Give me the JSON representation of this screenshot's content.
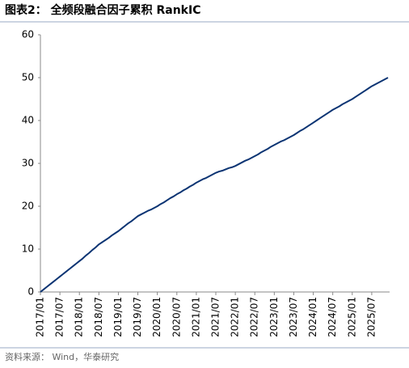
{
  "chart_data": {
    "type": "line",
    "title": "图表2：  全频段融合因子累积 RankIC",
    "source": "资料来源：  Wind，华泰研究",
    "categories": [
      "2017/01",
      null,
      null,
      null,
      null,
      null,
      "2017/07",
      null,
      null,
      null,
      null,
      null,
      "2018/01",
      null,
      null,
      null,
      null,
      null,
      "2018/07",
      null,
      null,
      null,
      null,
      null,
      "2019/01",
      null,
      null,
      null,
      null,
      null,
      "2019/07",
      null,
      null,
      null,
      null,
      null,
      "2020/01",
      null,
      null,
      null,
      null,
      null,
      "2020/07",
      null,
      null,
      null,
      null,
      null,
      "2021/01",
      null,
      null,
      null,
      null,
      null,
      "2021/07",
      null,
      null,
      null,
      null,
      null,
      "2022/01",
      null,
      null,
      null,
      null,
      null,
      "2022/07",
      null,
      null,
      null,
      null,
      null,
      "2023/01",
      null,
      null,
      null,
      null,
      null,
      "2023/07",
      null,
      null,
      null,
      null,
      null,
      "2024/01",
      null,
      null,
      null,
      null,
      null,
      "2024/07",
      null,
      null,
      null,
      null,
      null,
      "2025/01",
      null,
      null,
      null,
      null,
      null,
      "2025/07",
      null,
      null,
      null,
      null,
      null
    ],
    "values": [
      0,
      0.6,
      1.2,
      1.8,
      2.4,
      3.0,
      3.6,
      4.2,
      4.8,
      5.4,
      6.0,
      6.6,
      7.2,
      7.8,
      8.5,
      9.1,
      9.8,
      10.4,
      11.1,
      11.6,
      12.1,
      12.6,
      13.2,
      13.7,
      14.2,
      14.8,
      15.4,
      16.0,
      16.5,
      17.1,
      17.7,
      18.1,
      18.5,
      18.9,
      19.2,
      19.6,
      20,
      20.5,
      20.9,
      21.4,
      21.9,
      22.3,
      22.8,
      23.2,
      23.7,
      24.1,
      24.6,
      25.0,
      25.5,
      25.9,
      26.3,
      26.6,
      27.0,
      27.4,
      27.8,
      28.1,
      28.3,
      28.6,
      28.9,
      29.1,
      29.4,
      29.8,
      30.2,
      30.6,
      30.9,
      31.3,
      31.7,
      32.1,
      32.6,
      33.0,
      33.4,
      33.9,
      34.3,
      34.7,
      35.1,
      35.4,
      35.8,
      36.2,
      36.6,
      37.1,
      37.6,
      38.0,
      38.5,
      39.0,
      39.5,
      40.0,
      40.5,
      41.0,
      41.5,
      42.0,
      42.5,
      42.9,
      43.3,
      43.8,
      44.2,
      44.6,
      45,
      45.5,
      46,
      46.5,
      47,
      47.5,
      48,
      48.4,
      48.8,
      49.2,
      49.6,
      50
    ],
    "color": "#0b3473",
    "ylim": [
      0,
      60
    ],
    "yticks": [
      0,
      10,
      20,
      30,
      40,
      50,
      60
    ],
    "grid": false
  }
}
